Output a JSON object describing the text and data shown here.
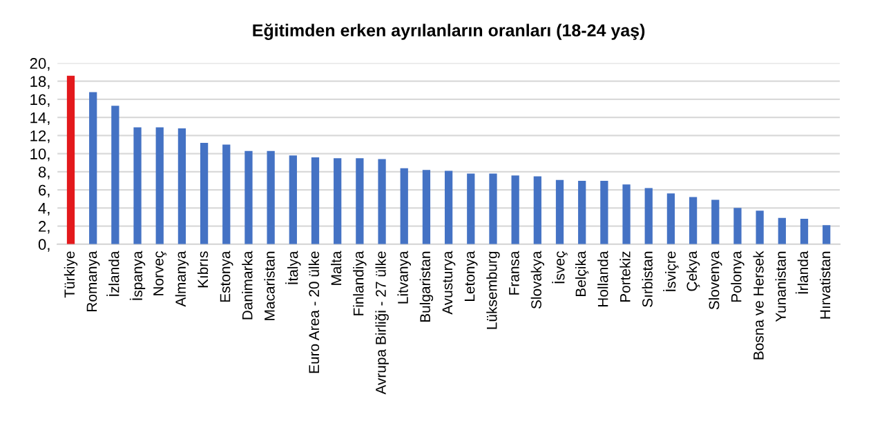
{
  "chart_data": {
    "type": "bar",
    "title": "Eğitimden erken ayrılanların oranları (18-24 yaş)",
    "categories": [
      "Türkiye",
      "Romanya",
      "İzlanda",
      "İspanya",
      "Norveç",
      "Almanya",
      "Kıbrıs",
      "Estonya",
      "Danimarka",
      "Macaristan",
      "İtalya",
      "Euro Area - 20 ülke",
      "Malta",
      "Finlandiya",
      "Avrupa Birliği - 27 ülke",
      "Litvanya",
      "Bulgaristan",
      "Avusturya",
      "Letonya",
      "Lüksemburg",
      "Fransa",
      "Slovakya",
      "İsveç",
      "Belçika",
      "Hollanda",
      "Portekiz",
      "Sırbistan",
      "İsviçre",
      "Çekya",
      "Slovenya",
      "Polonya",
      "Bosna ve Hersek",
      "Yunanistan",
      "İrlanda",
      "Hırvatistan"
    ],
    "values": [
      18.6,
      16.8,
      15.3,
      12.9,
      12.9,
      12.8,
      11.2,
      11.0,
      10.3,
      10.3,
      9.8,
      9.6,
      9.5,
      9.5,
      9.4,
      8.4,
      8.2,
      8.1,
      7.8,
      7.8,
      7.6,
      7.5,
      7.1,
      7.0,
      7.0,
      6.6,
      6.2,
      5.6,
      5.2,
      4.9,
      4.0,
      3.7,
      2.9,
      2.8,
      2.1
    ],
    "colors": [
      "#e3191c",
      "#4472c4",
      "#4472c4",
      "#4472c4",
      "#4472c4",
      "#4472c4",
      "#4472c4",
      "#4472c4",
      "#4472c4",
      "#4472c4",
      "#4472c4",
      "#4472c4",
      "#4472c4",
      "#4472c4",
      "#4472c4",
      "#4472c4",
      "#4472c4",
      "#4472c4",
      "#4472c4",
      "#4472c4",
      "#4472c4",
      "#4472c4",
      "#4472c4",
      "#4472c4",
      "#4472c4",
      "#4472c4",
      "#4472c4",
      "#4472c4",
      "#4472c4",
      "#4472c4",
      "#4472c4",
      "#4472c4",
      "#4472c4",
      "#4472c4",
      "#4472c4"
    ],
    "ylim": [
      0,
      20
    ],
    "yticks": [
      {
        "value": 0,
        "label": "0,"
      },
      {
        "value": 2,
        "label": "2,"
      },
      {
        "value": 4,
        "label": "4,"
      },
      {
        "value": 6,
        "label": "6,"
      },
      {
        "value": 8,
        "label": "8,"
      },
      {
        "value": 10,
        "label": "10,"
      },
      {
        "value": 12,
        "label": "12,"
      },
      {
        "value": 14,
        "label": "14,"
      },
      {
        "value": 16,
        "label": "16,"
      },
      {
        "value": 18,
        "label": "18,"
      },
      {
        "value": 20,
        "label": "20,"
      }
    ],
    "grid": "y"
  }
}
